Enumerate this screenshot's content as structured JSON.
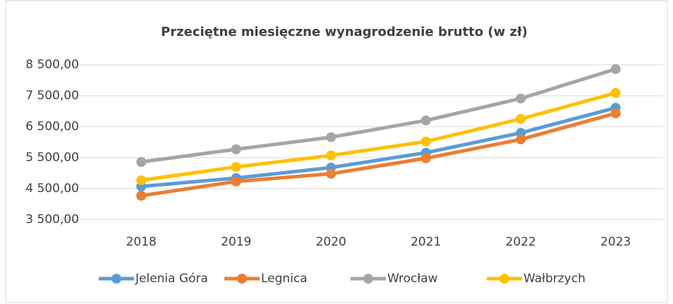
{
  "chart_data": {
    "type": "line",
    "title": "Przeciętne miesięczne wynagrodzenie brutto  (w zł)",
    "categories": [
      "2018",
      "2019",
      "2020",
      "2021",
      "2022",
      "2023"
    ],
    "series": [
      {
        "name": "Jelenia Góra",
        "color": "#5b9bd5",
        "values": [
          4570,
          4840,
          5180,
          5660,
          6300,
          7110
        ]
      },
      {
        "name": "Legnica",
        "color": "#ed7d31",
        "values": [
          4270,
          4730,
          4980,
          5480,
          6090,
          6930
        ]
      },
      {
        "name": "Wrocław",
        "color": "#a5a5a5",
        "values": [
          5360,
          5770,
          6160,
          6700,
          7410,
          8360
        ]
      },
      {
        "name": "Wałbrzych",
        "color": "#ffc000",
        "values": [
          4770,
          5200,
          5570,
          6020,
          6750,
          7590
        ]
      }
    ],
    "ylim": [
      3500,
      8500
    ],
    "yticks": [
      {
        "value": 3500,
        "label": "3 500,00"
      },
      {
        "value": 4500,
        "label": "4 500,00"
      },
      {
        "value": 5500,
        "label": "5 500,00"
      },
      {
        "value": 6500,
        "label": "6 500,00"
      },
      {
        "value": 7500,
        "label": "7 500,00"
      },
      {
        "value": 8500,
        "label": "8 500,00"
      }
    ],
    "grid": true,
    "legend": "bottom"
  }
}
